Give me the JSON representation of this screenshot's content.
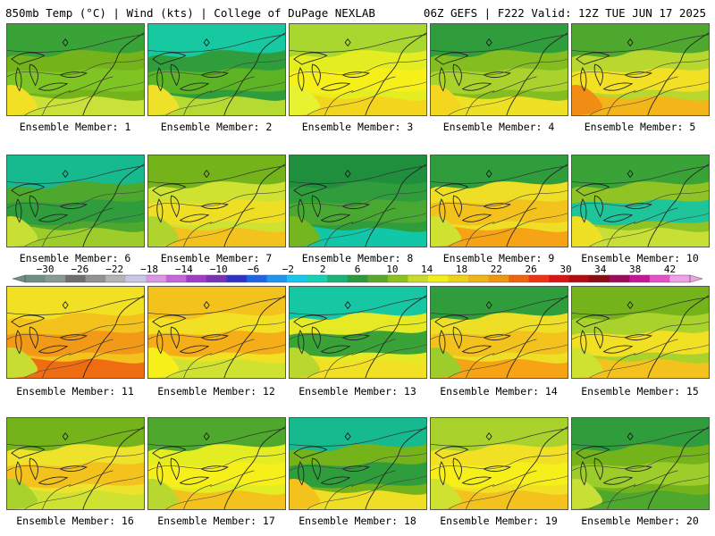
{
  "header": {
    "left": "850mb Temp (°C) | Wind (kts) | College of DuPage NEXLAB",
    "right": "06Z GEFS | F222 Valid: 12Z TUE JUN 17 2025"
  },
  "members": [
    {
      "label": "Ensemble Member: 1",
      "colors": [
        "#74b41a",
        "#3aa338",
        "#7ec523",
        "#c9e23a",
        "#f2e024"
      ]
    },
    {
      "label": "Ensemble Member: 2",
      "colors": [
        "#2f9d3c",
        "#16c9a0",
        "#5cb425",
        "#b5db33",
        "#efe02a"
      ]
    },
    {
      "label": "Ensemble Member: 3",
      "colors": [
        "#e4ec22",
        "#a9d72f",
        "#f7ef1a",
        "#f3d51e",
        "#e7f230"
      ]
    },
    {
      "label": "Ensemble Member: 4",
      "colors": [
        "#84bd20",
        "#2f9d3c",
        "#a9d22d",
        "#ede025",
        "#f4d61e"
      ]
    },
    {
      "label": "Ensemble Member: 5",
      "colors": [
        "#b8d830",
        "#4ea82e",
        "#f2e024",
        "#f4b51a",
        "#f18c15"
      ]
    },
    {
      "label": "Ensemble Member: 6",
      "colors": [
        "#4ea82e",
        "#17b98f",
        "#2f9d3c",
        "#9ccd2a",
        "#c8df35"
      ]
    },
    {
      "label": "Ensemble Member: 7",
      "colors": [
        "#cfe232",
        "#74b41a",
        "#eedf25",
        "#f4c21c",
        "#b0d42e"
      ]
    },
    {
      "label": "Ensemble Member: 8",
      "colors": [
        "#2f9d3c",
        "#1f8f3e",
        "#48a832",
        "#12c6a8",
        "#73b61f"
      ]
    },
    {
      "label": "Ensemble Member: 9",
      "colors": [
        "#eede26",
        "#2f9d3c",
        "#f4c21c",
        "#f6a316",
        "#cfe232"
      ]
    },
    {
      "label": "Ensemble Member: 10",
      "colors": [
        "#8fc424",
        "#3aa338",
        "#1ec49a",
        "#c8df35",
        "#ede025"
      ]
    },
    {
      "label": "Ensemble Member: 11",
      "colors": [
        "#f4c21c",
        "#f2e024",
        "#f29a18",
        "#ef6c13",
        "#c7dd33"
      ]
    },
    {
      "label": "Ensemble Member: 12",
      "colors": [
        "#f2e024",
        "#f4c21c",
        "#f5ae18",
        "#cfe232",
        "#f7ef1a"
      ]
    },
    {
      "label": "Ensemble Member: 13",
      "colors": [
        "#e6ea24",
        "#17c6a3",
        "#3aa338",
        "#f2e024",
        "#b8d830"
      ]
    },
    {
      "label": "Ensemble Member: 14",
      "colors": [
        "#eede26",
        "#2f9d3c",
        "#f4c21c",
        "#f6a316",
        "#9ccd2a"
      ]
    },
    {
      "label": "Ensemble Member: 15",
      "colors": [
        "#a9d22d",
        "#74b41a",
        "#f2e024",
        "#f4c21c",
        "#cfe232"
      ]
    },
    {
      "label": "Ensemble Member: 16",
      "colors": [
        "#eee32a",
        "#74b41a",
        "#f4c21c",
        "#cfe232",
        "#a9d22d"
      ]
    },
    {
      "label": "Ensemble Member: 17",
      "colors": [
        "#e4ec22",
        "#4ea82e",
        "#f7ef1a",
        "#f4c21c",
        "#b8d830"
      ]
    },
    {
      "label": "Ensemble Member: 18",
      "colors": [
        "#74b41a",
        "#17b98f",
        "#2f9d3c",
        "#eede26",
        "#f4c21c"
      ]
    },
    {
      "label": "Ensemble Member: 19",
      "colors": [
        "#f2e024",
        "#a9d22d",
        "#f7ef1a",
        "#f4c21c",
        "#cfe232"
      ]
    },
    {
      "label": "Ensemble Member: 20",
      "colors": [
        "#74b41a",
        "#2f9d3c",
        "#9ccd2a",
        "#4ea82e",
        "#c8df35"
      ]
    }
  ],
  "colorbar": {
    "ticks": [
      "-30",
      "-26",
      "-22",
      "-18",
      "-14",
      "-10",
      "-6",
      "-2",
      "2",
      "6",
      "10",
      "14",
      "18",
      "22",
      "26",
      "30",
      "34",
      "38",
      "42"
    ],
    "colors": [
      "#6f8f84",
      "#8a9a90",
      "#6e6e6e",
      "#929292",
      "#b4b4b4",
      "#c8c8e6",
      "#dc96e6",
      "#c864dc",
      "#a03cc8",
      "#7832b4",
      "#3232c8",
      "#1e64e6",
      "#1e96f0",
      "#16c8f0",
      "#16d2b4",
      "#16b478",
      "#2c9a3c",
      "#5aa82a",
      "#8cc21e",
      "#c8dc28",
      "#f0f014",
      "#f0d214",
      "#f0b414",
      "#f0960f",
      "#f0640f",
      "#f03214",
      "#dc1414",
      "#b40a14",
      "#8c0a14",
      "#a00a5a",
      "#c81496",
      "#e650c8",
      "#f0a0e6"
    ]
  }
}
